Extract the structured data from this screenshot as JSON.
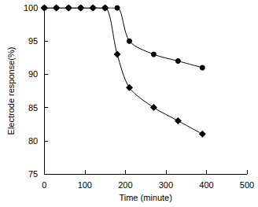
{
  "chart_data": {
    "type": "line",
    "x_label": "Time (minute)",
    "y_label": "Electrode response(%)",
    "x": [
      0,
      30,
      60,
      90,
      120,
      150,
      180,
      210,
      270,
      330,
      390
    ],
    "series": [
      {
        "color": "#000000",
        "marker": "circle",
        "line_style": "solid",
        "values": [
          100,
          100,
          100,
          100,
          100,
          100,
          100,
          95,
          93,
          92,
          91
        ]
      },
      {
        "color": "#000000",
        "marker": "diamond",
        "line_style": "solid",
        "values": [
          100,
          100,
          100,
          100,
          100,
          100,
          93,
          88,
          85,
          83,
          81
        ]
      }
    ],
    "xlim": [
      0,
      500
    ],
    "xticks": [
      0,
      100,
      200,
      300,
      400,
      500
    ],
    "ylim": [
      75,
      100
    ],
    "yticks": [
      75,
      80,
      85,
      90,
      95,
      100
    ],
    "grid": false
  }
}
